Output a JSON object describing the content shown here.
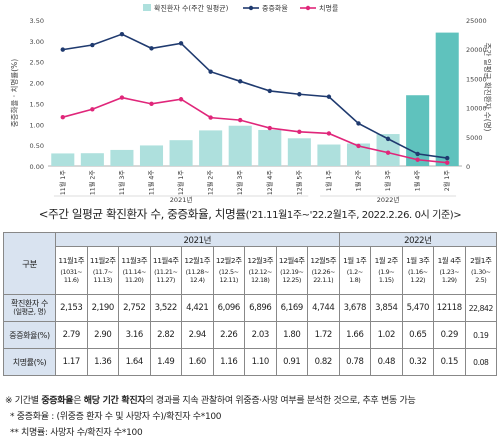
{
  "chart_data": {
    "type": "bar+line",
    "categories": [
      "11월 1주",
      "11월 2주",
      "11월 3주",
      "11월 4주",
      "12월 1주",
      "12월 2주",
      "12월 3주",
      "12월 4주",
      "12월 5주",
      "1월 1주",
      "1월 2주",
      "1월 3주",
      "1월 4주",
      "2월 1주"
    ],
    "year_labels": [
      "2021년",
      "2022년"
    ],
    "legend": [
      "확진환자 수(주간 일평균)",
      "중증화율",
      "치명률"
    ],
    "bar_color": "#aee0dd",
    "bar_color_highlight": "#5fc2bd",
    "rate_color": "#1f3a6f",
    "fatal_color": "#e0267a",
    "left_ylabel": "중증화율 · 치명률(%)",
    "right_ylabel": "주간 일평균 확진환자 수(명)",
    "left_ticks": [
      "0.00",
      "0.50",
      "1.00",
      "1.50",
      "2.00",
      "2.50",
      "3.00",
      "3.50"
    ],
    "right_ticks": [
      "0",
      "5000",
      "10000",
      "15000",
      "20000",
      "25000"
    ],
    "left_ylim": [
      0,
      3.5
    ],
    "right_ylim": [
      0,
      25000
    ],
    "cases": [
      2153,
      2190,
      2752,
      3522,
      4421,
      6096,
      6896,
      6169,
      4744,
      3678,
      3854,
      5470,
      12118,
      22842
    ],
    "severity": [
      2.79,
      2.9,
      3.16,
      2.82,
      2.94,
      2.26,
      2.03,
      1.8,
      1.72,
      1.66,
      1.02,
      0.65,
      0.29,
      0.19
    ],
    "fatality": [
      1.17,
      1.36,
      1.64,
      1.49,
      1.6,
      1.16,
      1.1,
      0.91,
      0.82,
      0.78,
      0.48,
      0.32,
      0.15,
      0.08
    ]
  },
  "caption": {
    "main": "<주간 일평균 확진환자 수, 중증화율, 치명률",
    "sub": "('21.11월1주~'22.2월1주, 2022.2.26. 0시 기준)>"
  },
  "table": {
    "corner": "구분",
    "year_2021": "2021년",
    "year_2022": "2022년",
    "weeks": [
      "11월1주",
      "11월2주",
      "11월3주",
      "11월4주",
      "12월1주",
      "12월2주",
      "12월3주",
      "12월4주",
      "12월5주",
      "1월 1주",
      "1월 2주",
      "1월 3주",
      "1월 4주",
      "2월1주"
    ],
    "ranges": [
      [
        "(1031~",
        "11.6)"
      ],
      [
        "(11.7~",
        "11.13)"
      ],
      [
        "(11.14~",
        "11.20)"
      ],
      [
        "(11.21~",
        "11.27)"
      ],
      [
        "(11.28~",
        "12.4)"
      ],
      [
        "(12.5~",
        "12.11)"
      ],
      [
        "(12.12~",
        "12.18)"
      ],
      [
        "(12.19~",
        "12.25)"
      ],
      [
        "(12.26~",
        "22.1.1)"
      ],
      [
        "(1.2~",
        "1.8)"
      ],
      [
        "(1.9~",
        "1.15)"
      ],
      [
        "(1.16~",
        "1.22)"
      ],
      [
        "(1.23~",
        "1.29)"
      ],
      [
        "(1.30~",
        "2.5)"
      ]
    ],
    "rows": [
      {
        "label1": "확진환자 수",
        "label2": "(일평균, 명)",
        "values": [
          "2,153",
          "2,190",
          "2,752",
          "3,522",
          "4,421",
          "6,096",
          "6,896",
          "6,169",
          "4,744",
          "3,678",
          "3,854",
          "5,470",
          "12118",
          "22,842"
        ]
      },
      {
        "label1": "중증화율(%)",
        "label2": "",
        "values": [
          "2.79",
          "2.90",
          "3.16",
          "2.82",
          "2.94",
          "2.26",
          "2.03",
          "1.80",
          "1.72",
          "1.66",
          "1.02",
          "0.65",
          "0.29",
          "0.19"
        ]
      },
      {
        "label1": "치명률(%)",
        "label2": "",
        "values": [
          "1.17",
          "1.36",
          "1.64",
          "1.49",
          "1.60",
          "1.16",
          "1.10",
          "0.91",
          "0.82",
          "0.78",
          "0.48",
          "0.32",
          "0.15",
          "0.08"
        ]
      }
    ]
  },
  "footnotes": {
    "line1_prefix": "※ 기간별 ",
    "line1_bold1": "중증화율",
    "line1_mid": "은 ",
    "line1_bold2": "해당 기간 확진자",
    "line1_rest": "의 경과를 지속 관찰하여 위중증·사망 여부를 분석한 것으로, 추후 변동 가능",
    "line2": "* 중증화율 : (위중증 환자 수 및 사망자 수)/확진자 수*100",
    "line3": "** 치명률: 사망자 수/확진자 수*100"
  }
}
